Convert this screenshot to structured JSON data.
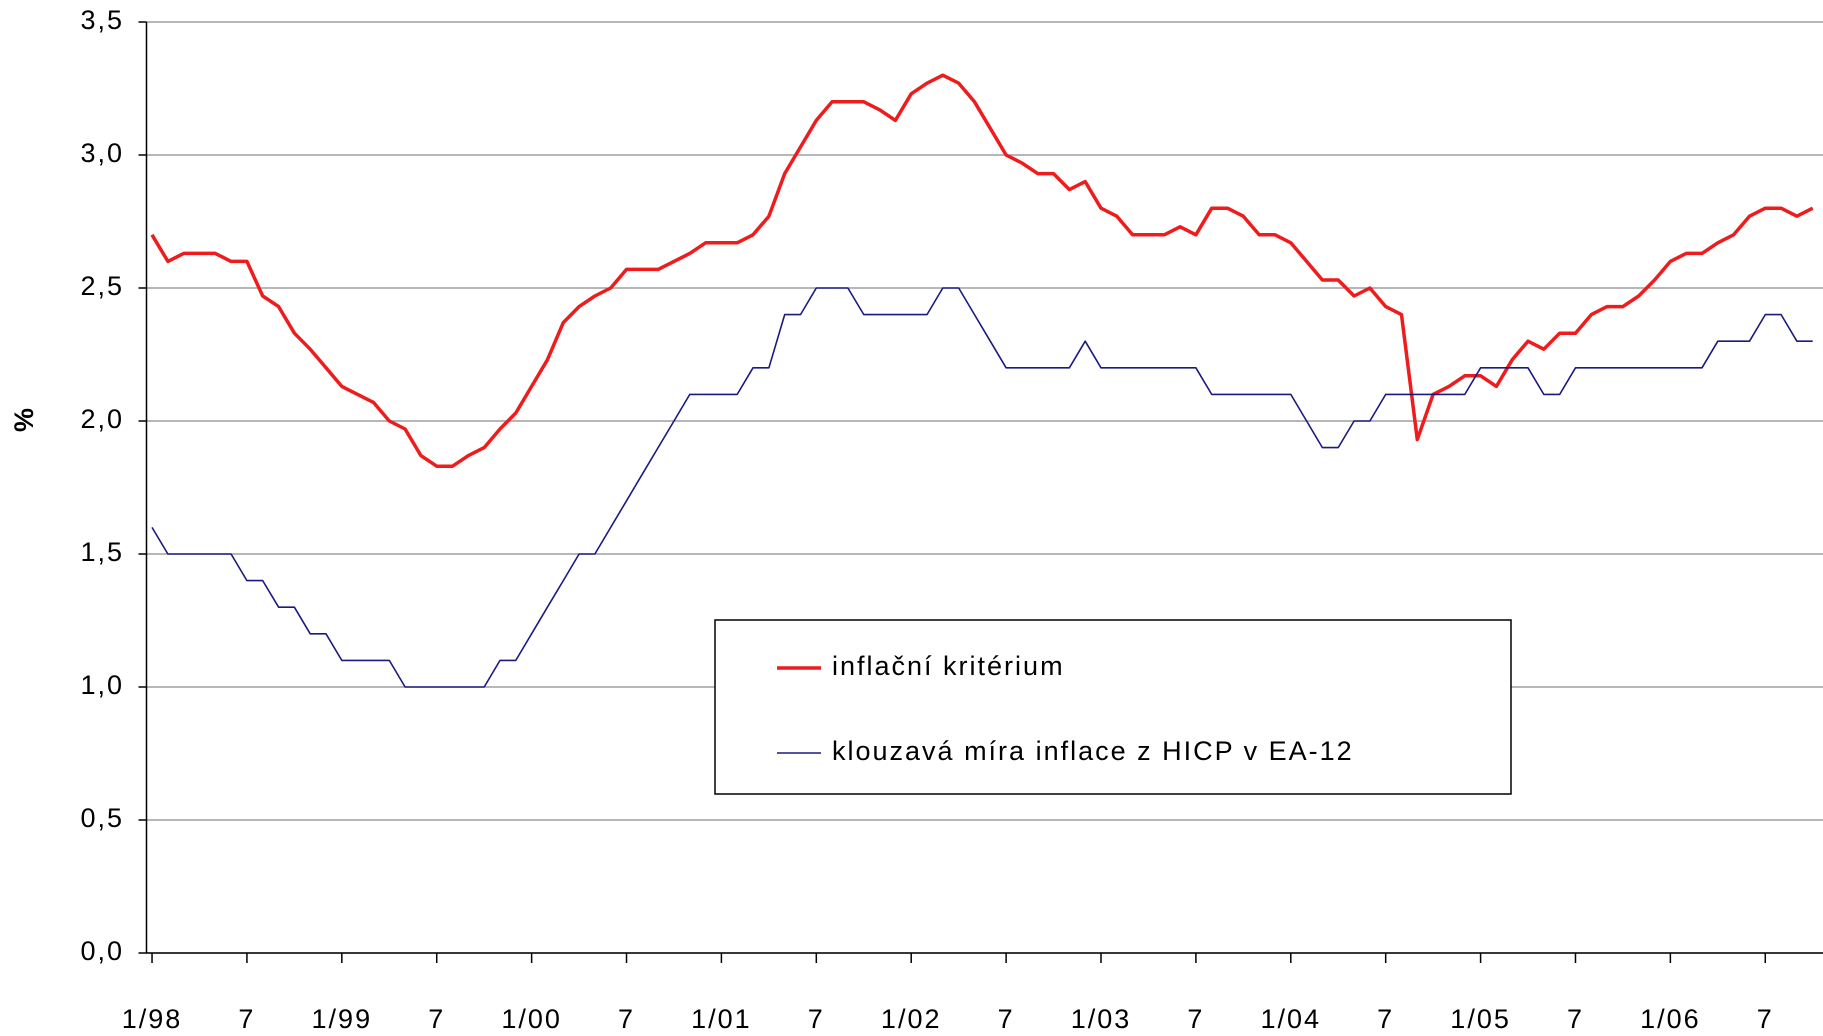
{
  "chart_data": {
    "type": "line",
    "y_label": "%",
    "categories": [
      "1/98",
      null,
      null,
      null,
      null,
      null,
      "7",
      null,
      null,
      null,
      null,
      null,
      "1/99",
      null,
      null,
      null,
      null,
      null,
      "7",
      null,
      null,
      null,
      null,
      null,
      "1/00",
      null,
      null,
      null,
      null,
      null,
      "7",
      null,
      null,
      null,
      null,
      null,
      "1/01",
      null,
      null,
      null,
      null,
      null,
      "7",
      null,
      null,
      null,
      null,
      null,
      "1/02",
      null,
      null,
      null,
      null,
      null,
      "7",
      null,
      null,
      null,
      null,
      null,
      "1/03",
      null,
      null,
      null,
      null,
      null,
      "7",
      null,
      null,
      null,
      null,
      null,
      "1/04",
      null,
      null,
      null,
      null,
      null,
      "7",
      null,
      null,
      null,
      null,
      null,
      "1/05",
      null,
      null,
      null,
      null,
      null,
      "7",
      null,
      null,
      null,
      null,
      null,
      "1/06",
      null,
      null,
      null,
      null,
      null,
      "7",
      null,
      null,
      null
    ],
    "series": [
      {
        "name": "inflační kritérium",
        "color": "#ee1c1c",
        "width": 3.5,
        "values": [
          2.7,
          2.6,
          2.63,
          2.63,
          2.63,
          2.6,
          2.6,
          2.47,
          2.43,
          2.33,
          2.27,
          2.2,
          2.13,
          2.1,
          2.07,
          2.0,
          1.97,
          1.87,
          1.83,
          1.83,
          1.87,
          1.9,
          1.97,
          2.03,
          2.13,
          2.23,
          2.37,
          2.43,
          2.47,
          2.5,
          2.57,
          2.57,
          2.57,
          2.6,
          2.63,
          2.67,
          2.67,
          2.67,
          2.7,
          2.77,
          2.93,
          3.03,
          3.13,
          3.2,
          3.2,
          3.2,
          3.17,
          3.13,
          3.23,
          3.27,
          3.3,
          3.27,
          3.2,
          3.1,
          3.0,
          2.97,
          2.93,
          2.93,
          2.87,
          2.9,
          2.8,
          2.77,
          2.7,
          2.7,
          2.7,
          2.73,
          2.7,
          2.8,
          2.8,
          2.77,
          2.7,
          2.7,
          2.67,
          2.6,
          2.53,
          2.53,
          2.47,
          2.5,
          2.43,
          2.4,
          1.93,
          2.1,
          2.13,
          2.17,
          2.17,
          2.13,
          2.23,
          2.3,
          2.27,
          2.33,
          2.33,
          2.4,
          2.43,
          2.43,
          2.47,
          2.53,
          2.6,
          2.63,
          2.63,
          2.67,
          2.7,
          2.77,
          2.8,
          2.8,
          2.77,
          2.8
        ]
      },
      {
        "name": "klouzavá míra inflace z HICP v EA-12",
        "color": "#1a1a80",
        "width": 1.6,
        "values": [
          1.6,
          1.5,
          1.5,
          1.5,
          1.5,
          1.5,
          1.4,
          1.4,
          1.3,
          1.3,
          1.2,
          1.2,
          1.1,
          1.1,
          1.1,
          1.1,
          1.0,
          1.0,
          1.0,
          1.0,
          1.0,
          1.0,
          1.1,
          1.1,
          1.2,
          1.3,
          1.4,
          1.5,
          1.5,
          1.6,
          1.7,
          1.8,
          1.9,
          2.0,
          2.1,
          2.1,
          2.1,
          2.1,
          2.2,
          2.2,
          2.4,
          2.4,
          2.5,
          2.5,
          2.5,
          2.4,
          2.4,
          2.4,
          2.4,
          2.4,
          2.5,
          2.5,
          2.4,
          2.3,
          2.2,
          2.2,
          2.2,
          2.2,
          2.2,
          2.3,
          2.2,
          2.2,
          2.2,
          2.2,
          2.2,
          2.2,
          2.2,
          2.1,
          2.1,
          2.1,
          2.1,
          2.1,
          2.1,
          2.0,
          1.9,
          1.9,
          2.0,
          2.0,
          2.1,
          2.1,
          2.1,
          2.1,
          2.1,
          2.1,
          2.2,
          2.2,
          2.2,
          2.2,
          2.1,
          2.1,
          2.2,
          2.2,
          2.2,
          2.2,
          2.2,
          2.2,
          2.2,
          2.2,
          2.2,
          2.3,
          2.3,
          2.3,
          2.4,
          2.4,
          2.3,
          2.3
        ]
      }
    ],
    "ylim": [
      0,
      3.5
    ],
    "yticks": [
      {
        "value": 0,
        "label": "0,0"
      },
      {
        "value": 0.5,
        "label": "0,5"
      },
      {
        "value": 1,
        "label": "1,0"
      },
      {
        "value": 1.5,
        "label": "1,5"
      },
      {
        "value": 2,
        "label": "2,0"
      },
      {
        "value": 2.5,
        "label": "2,5"
      },
      {
        "value": 3,
        "label": "3,0"
      },
      {
        "value": 3.5,
        "label": "3,5"
      }
    ],
    "grid": true,
    "legend": "center"
  }
}
